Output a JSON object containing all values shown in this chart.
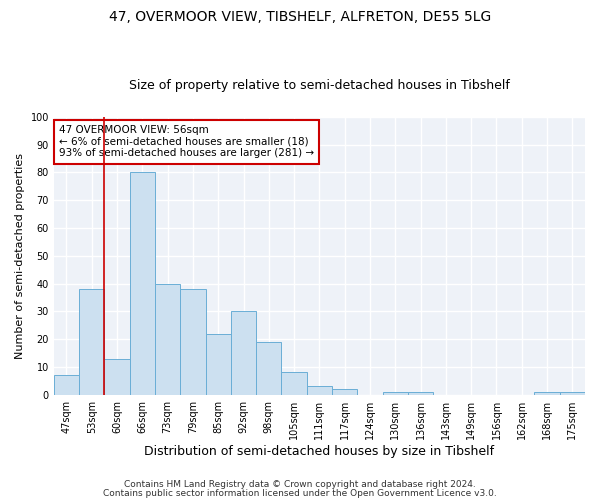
{
  "title": "47, OVERMOOR VIEW, TIBSHELF, ALFRETON, DE55 5LG",
  "subtitle": "Size of property relative to semi-detached houses in Tibshelf",
  "xlabel": "Distribution of semi-detached houses by size in Tibshelf",
  "ylabel": "Number of semi-detached properties",
  "categories": [
    "47sqm",
    "53sqm",
    "60sqm",
    "66sqm",
    "73sqm",
    "79sqm",
    "85sqm",
    "92sqm",
    "98sqm",
    "105sqm",
    "111sqm",
    "117sqm",
    "124sqm",
    "130sqm",
    "136sqm",
    "143sqm",
    "149sqm",
    "156sqm",
    "162sqm",
    "168sqm",
    "175sqm"
  ],
  "values": [
    7,
    38,
    13,
    80,
    40,
    38,
    22,
    30,
    19,
    8,
    3,
    2,
    0,
    1,
    1,
    0,
    0,
    0,
    0,
    1,
    1
  ],
  "bar_color": "#cce0f0",
  "bar_edge_color": "#6aaed6",
  "annotation_text": "47 OVERMOOR VIEW: 56sqm\n← 6% of semi-detached houses are smaller (18)\n93% of semi-detached houses are larger (281) →",
  "annotation_box_color": "#ffffff",
  "annotation_box_edge_color": "#cc0000",
  "vline_color": "#cc0000",
  "vline_x": 1.5,
  "ylim": [
    0,
    100
  ],
  "yticks": [
    0,
    10,
    20,
    30,
    40,
    50,
    60,
    70,
    80,
    90,
    100
  ],
  "footer1": "Contains HM Land Registry data © Crown copyright and database right 2024.",
  "footer2": "Contains public sector information licensed under the Open Government Licence v3.0.",
  "bg_color": "#ffffff",
  "plot_bg_color": "#eef2f8",
  "grid_color": "#ffffff",
  "title_fontsize": 10,
  "subtitle_fontsize": 9,
  "ylabel_fontsize": 8,
  "xlabel_fontsize": 9,
  "tick_fontsize": 7,
  "annotation_fontsize": 7.5,
  "footer_fontsize": 6.5
}
